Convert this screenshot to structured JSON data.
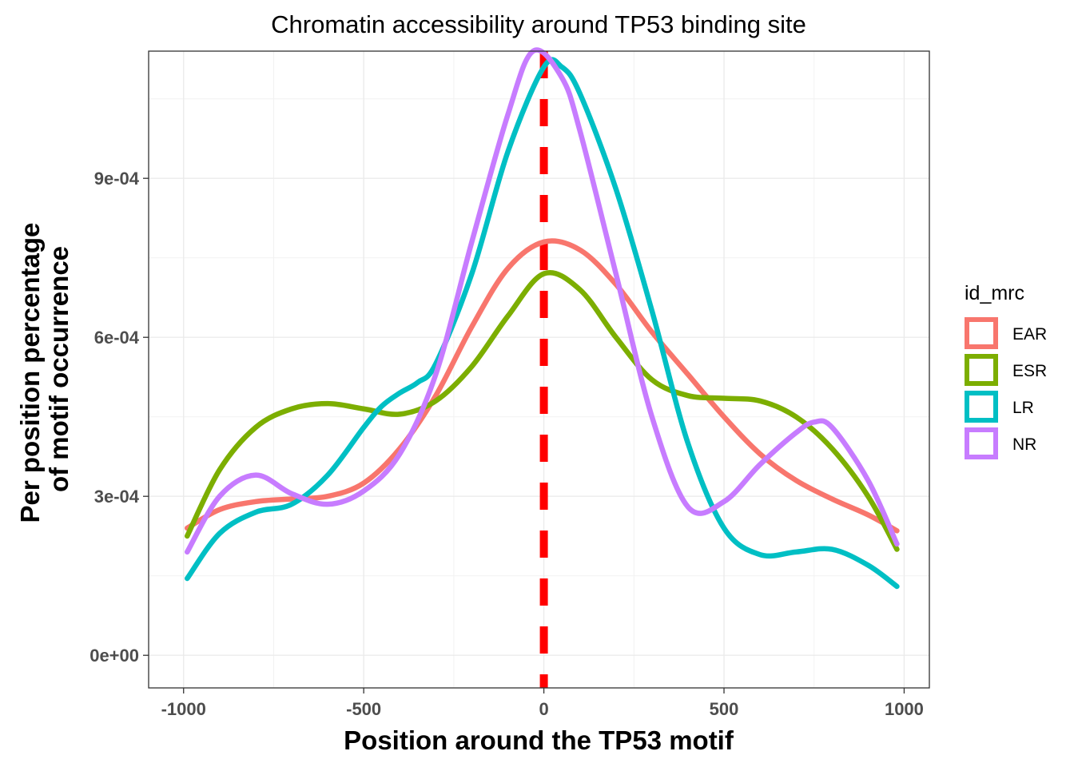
{
  "chart_data": {
    "type": "line",
    "title": "Chromatin accessibility around TP53 binding site",
    "xlabel": "Position around the TP53 motif",
    "ylabel": [
      "Per position percentage",
      "of motif occurrence"
    ],
    "xlim": [
      -1000,
      1000
    ],
    "ylim": [
      0,
      0.00114
    ],
    "x_ticks": [
      -1000,
      -500,
      0,
      500,
      1000
    ],
    "x_tick_labels": [
      "-1000",
      "-500",
      "0",
      "500",
      "1000"
    ],
    "y_ticks": [
      0,
      0.0003,
      0.0006,
      0.0009
    ],
    "y_tick_labels": [
      "0e+00",
      "3e-04",
      "6e-04",
      "9e-04"
    ],
    "grid": true,
    "vline": {
      "x": 0,
      "color": "#ff0000",
      "style": "dashed"
    },
    "legend": {
      "title": "id_mrc",
      "position": "right"
    },
    "series": [
      {
        "name": "EAR",
        "color": "#f8766d",
        "x": [
          -990,
          -900,
          -800,
          -700,
          -600,
          -500,
          -400,
          -300,
          -200,
          -100,
          0,
          100,
          200,
          300,
          400,
          500,
          600,
          700,
          800,
          900,
          980
        ],
        "y": [
          0.00024,
          0.000275,
          0.00029,
          0.000295,
          0.0003,
          0.000325,
          0.00039,
          0.00049,
          0.00062,
          0.00073,
          0.00078,
          0.000765,
          0.0007,
          0.00061,
          0.00053,
          0.00045,
          0.00038,
          0.00033,
          0.000295,
          0.000265,
          0.000235
        ]
      },
      {
        "name": "ESR",
        "color": "#7cae00",
        "x": [
          -990,
          -900,
          -800,
          -700,
          -600,
          -500,
          -400,
          -300,
          -200,
          -100,
          0,
          100,
          200,
          300,
          400,
          500,
          600,
          700,
          800,
          900,
          980
        ],
        "y": [
          0.000225,
          0.00035,
          0.00043,
          0.000465,
          0.000475,
          0.000465,
          0.000455,
          0.00048,
          0.000545,
          0.00064,
          0.00072,
          0.00069,
          0.0006,
          0.00052,
          0.00049,
          0.000485,
          0.00048,
          0.00045,
          0.00039,
          0.0003,
          0.0002
        ]
      },
      {
        "name": "LR",
        "color": "#00bfc4",
        "x": [
          -990,
          -900,
          -800,
          -700,
          -600,
          -500,
          -450,
          -400,
          -350,
          -300,
          -200,
          -100,
          0,
          50,
          100,
          200,
          300,
          400,
          500,
          600,
          700,
          800,
          900,
          980
        ],
        "y": [
          0.000145,
          0.00023,
          0.00027,
          0.000285,
          0.00034,
          0.00043,
          0.00047,
          0.000495,
          0.000515,
          0.00055,
          0.00072,
          0.00095,
          0.00111,
          0.00111,
          0.00106,
          0.00088,
          0.00065,
          0.0004,
          0.00024,
          0.00019,
          0.000195,
          0.0002,
          0.00017,
          0.00013
        ]
      },
      {
        "name": "NR",
        "color": "#c77cff",
        "x": [
          -990,
          -900,
          -800,
          -700,
          -600,
          -500,
          -400,
          -300,
          -200,
          -100,
          -30,
          50,
          100,
          200,
          300,
          400,
          500,
          600,
          700,
          750,
          800,
          900,
          980
        ],
        "y": [
          0.000195,
          0.0003,
          0.00034,
          0.000305,
          0.000285,
          0.00031,
          0.00038,
          0.00053,
          0.00078,
          0.00102,
          0.00114,
          0.00109,
          0.00099,
          0.00072,
          0.00045,
          0.00028,
          0.00029,
          0.00036,
          0.00042,
          0.00044,
          0.00043,
          0.00033,
          0.00021
        ]
      }
    ]
  }
}
